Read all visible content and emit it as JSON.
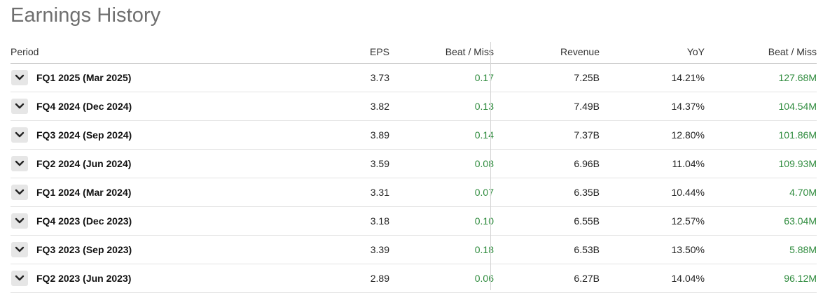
{
  "title": "Earnings History",
  "headers": {
    "period": "Period",
    "eps": "EPS",
    "eps_beat_miss": "Beat / Miss",
    "revenue": "Revenue",
    "yoy": "YoY",
    "revenue_beat_miss": "Beat / Miss"
  },
  "colors": {
    "positive": "#2e8b3d",
    "title": "#6f6f6f"
  },
  "rows": [
    {
      "period": "FQ1 2025 (Mar 2025)",
      "eps": "3.73",
      "eps_beat_miss": "0.17",
      "revenue": "7.25B",
      "yoy": "14.21%",
      "revenue_beat_miss": "127.68M"
    },
    {
      "period": "FQ4 2024 (Dec 2024)",
      "eps": "3.82",
      "eps_beat_miss": "0.13",
      "revenue": "7.49B",
      "yoy": "14.37%",
      "revenue_beat_miss": "104.54M"
    },
    {
      "period": "FQ3 2024 (Sep 2024)",
      "eps": "3.89",
      "eps_beat_miss": "0.14",
      "revenue": "7.37B",
      "yoy": "12.80%",
      "revenue_beat_miss": "101.86M"
    },
    {
      "period": "FQ2 2024 (Jun 2024)",
      "eps": "3.59",
      "eps_beat_miss": "0.08",
      "revenue": "6.96B",
      "yoy": "11.04%",
      "revenue_beat_miss": "109.93M"
    },
    {
      "period": "FQ1 2024 (Mar 2024)",
      "eps": "3.31",
      "eps_beat_miss": "0.07",
      "revenue": "6.35B",
      "yoy": "10.44%",
      "revenue_beat_miss": "4.70M"
    },
    {
      "period": "FQ4 2023 (Dec 2023)",
      "eps": "3.18",
      "eps_beat_miss": "0.10",
      "revenue": "6.55B",
      "yoy": "12.57%",
      "revenue_beat_miss": "63.04M"
    },
    {
      "period": "FQ3 2023 (Sep 2023)",
      "eps": "3.39",
      "eps_beat_miss": "0.18",
      "revenue": "6.53B",
      "yoy": "13.50%",
      "revenue_beat_miss": "5.88M"
    },
    {
      "period": "FQ2 2023 (Jun 2023)",
      "eps": "2.89",
      "eps_beat_miss": "0.06",
      "revenue": "6.27B",
      "yoy": "14.04%",
      "revenue_beat_miss": "96.12M"
    }
  ]
}
